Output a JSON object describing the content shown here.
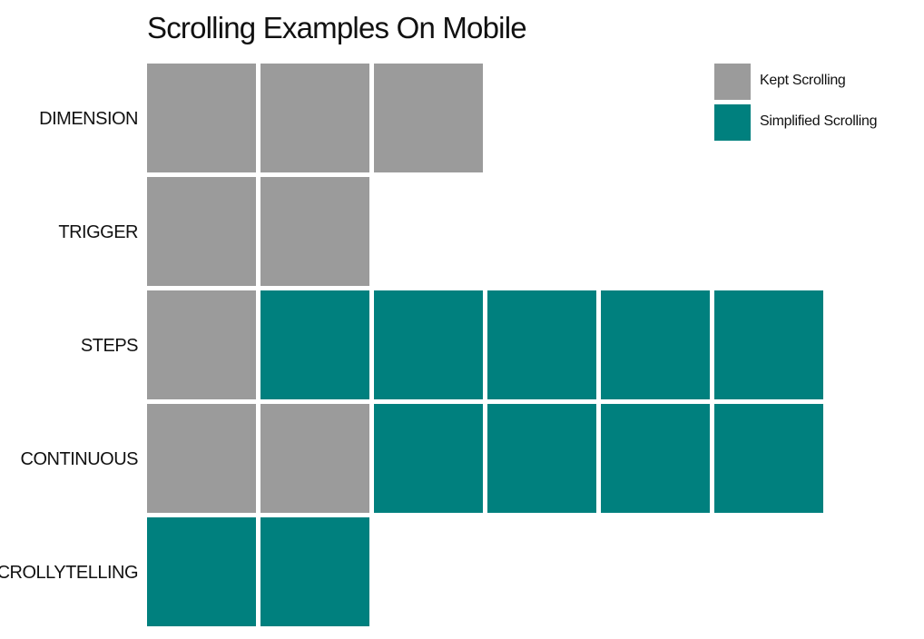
{
  "chart_data": {
    "type": "heatmap",
    "title": "Scrolling Examples On Mobile",
    "legend_position": "top-right",
    "categories": [
      "Kept Scrolling",
      "Simplified Scrolling"
    ],
    "colors": {
      "Kept Scrolling": "#9b9b9b",
      "Simplified Scrolling": "#00807e"
    },
    "rows": [
      {
        "label": "DIMENSION",
        "cells": [
          "Kept Scrolling",
          "Kept Scrolling",
          "Kept Scrolling"
        ]
      },
      {
        "label": "TRIGGER",
        "cells": [
          "Kept Scrolling",
          "Kept Scrolling"
        ]
      },
      {
        "label": "STEPS",
        "cells": [
          "Kept Scrolling",
          "Simplified Scrolling",
          "Simplified Scrolling",
          "Simplified Scrolling",
          "Simplified Scrolling",
          "Simplified Scrolling"
        ]
      },
      {
        "label": "CONTINUOUS",
        "cells": [
          "Kept Scrolling",
          "Kept Scrolling",
          "Simplified Scrolling",
          "Simplified Scrolling",
          "Simplified Scrolling",
          "Simplified Scrolling"
        ]
      },
      {
        "label": "SCROLLYTELLING",
        "cells": [
          "Simplified Scrolling",
          "Simplified Scrolling"
        ]
      }
    ]
  }
}
